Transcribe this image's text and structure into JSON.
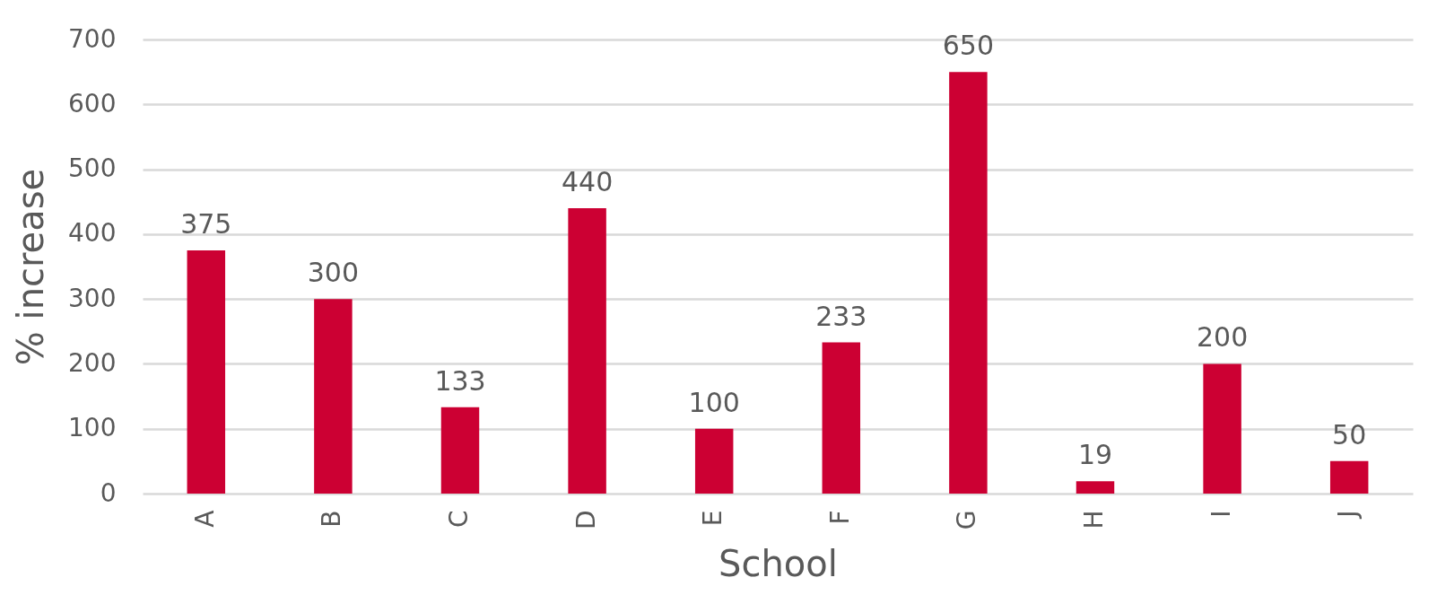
{
  "chart_data": {
    "type": "bar",
    "xlabel": "School",
    "ylabel": "% increase",
    "categories": [
      "A",
      "B",
      "C",
      "D",
      "E",
      "F",
      "G",
      "H",
      "I",
      "J"
    ],
    "values": [
      375,
      300,
      133,
      440,
      100,
      233,
      650,
      19,
      200,
      50
    ],
    "color": "#cc0033",
    "ylim": [
      0,
      700
    ],
    "yticks": [
      0,
      100,
      200,
      300,
      400,
      500,
      600,
      700
    ],
    "grid": "y",
    "data_labels": true
  }
}
